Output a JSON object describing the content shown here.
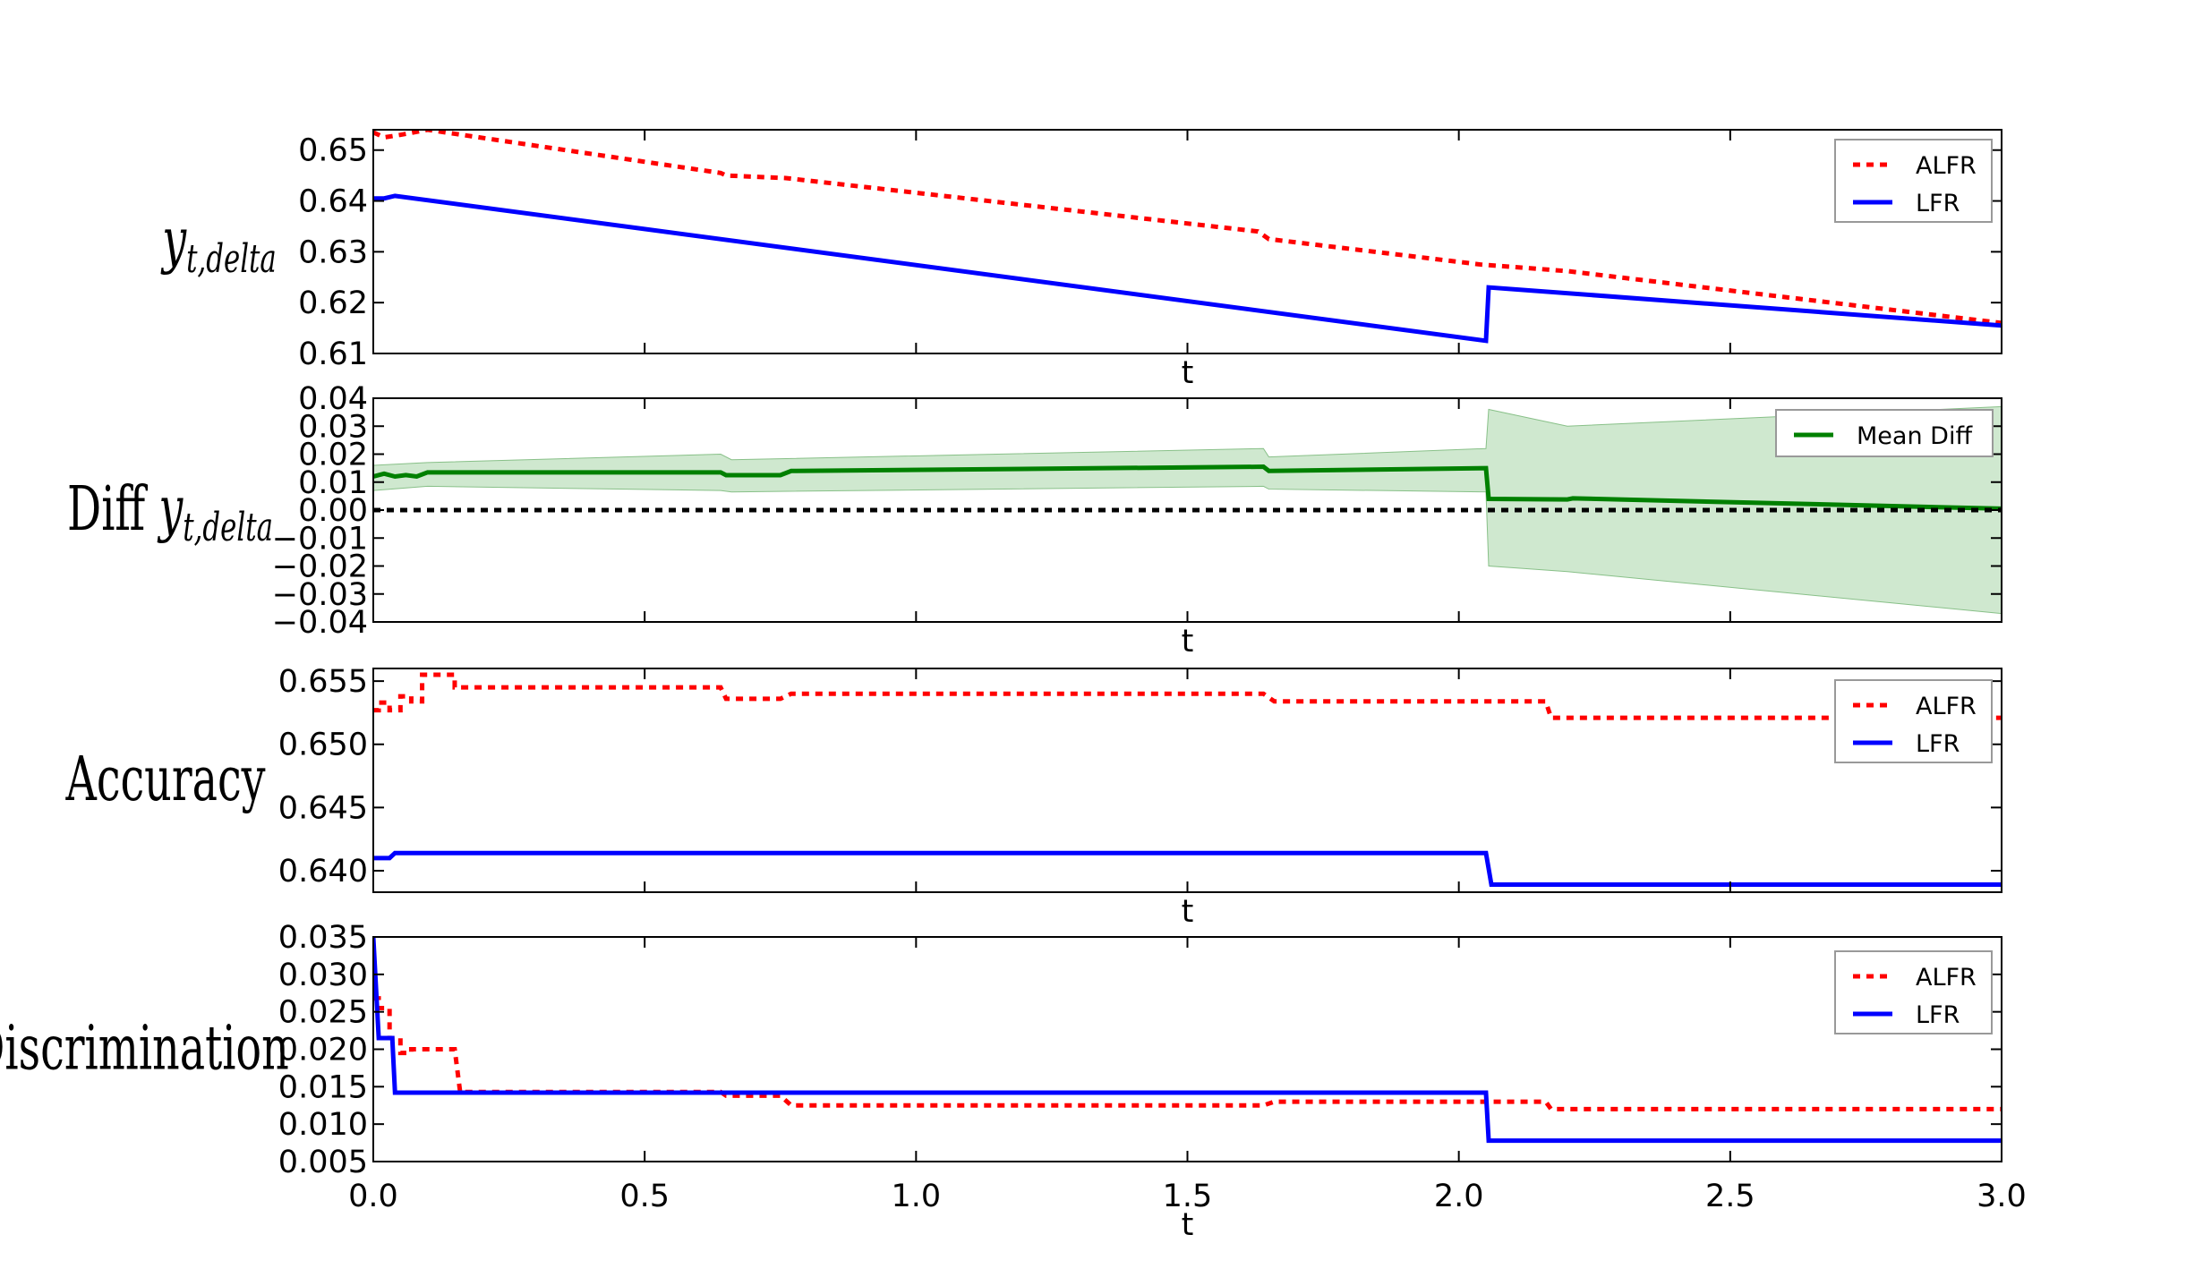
{
  "x_ticks": [
    "0.0",
    "0.5",
    "1.0",
    "1.5",
    "2.0",
    "2.5",
    "3.0"
  ],
  "chart_data": [
    {
      "type": "line",
      "xlabel": "t",
      "ylabel": "y_{t,delta}",
      "ylabel_parts": {
        "base": "y",
        "sub": "t,delta"
      },
      "xlim": [
        0,
        3
      ],
      "ylim": [
        0.61,
        0.654
      ],
      "yticks": [
        "0.61",
        "0.62",
        "0.63",
        "0.64",
        "0.65"
      ],
      "ytick_values": [
        0.61,
        0.62,
        0.63,
        0.64,
        0.65
      ],
      "legend_position": "top-right",
      "series": [
        {
          "name": "ALFR",
          "color": "#ff0000",
          "style": "dotted",
          "points": [
            [
              0,
              0.6535
            ],
            [
              0.02,
              0.6525
            ],
            [
              0.05,
              0.653
            ],
            [
              0.1,
              0.654
            ],
            [
              0.64,
              0.6455
            ],
            [
              0.65,
              0.645
            ],
            [
              0.76,
              0.6445
            ],
            [
              1.63,
              0.634
            ],
            [
              1.65,
              0.6325
            ],
            [
              2.04,
              0.6275
            ],
            [
              2.2,
              0.6262
            ],
            [
              3.0,
              0.616
            ]
          ]
        },
        {
          "name": "LFR",
          "color": "#0000ff",
          "style": "solid",
          "points": [
            [
              0,
              0.6405
            ],
            [
              0.02,
              0.6405
            ],
            [
              0.04,
              0.641
            ],
            [
              2.05,
              0.6125
            ],
            [
              2.055,
              0.623
            ],
            [
              3.0,
              0.6155
            ]
          ]
        }
      ]
    },
    {
      "type": "line",
      "xlabel": "t",
      "ylabel": "Diff y_{t,delta}",
      "ylabel_parts": {
        "prefix": "Diff",
        "base": "y",
        "sub": "t,delta"
      },
      "xlim": [
        0,
        3
      ],
      "ylim": [
        -0.04,
        0.04
      ],
      "yticks": [
        "0.04",
        "0.03",
        "0.02",
        "0.01",
        "0.00",
        "−0.01",
        "−0.02",
        "−0.03",
        "−0.04"
      ],
      "ytick_values": [
        0.04,
        0.03,
        0.02,
        0.01,
        0.0,
        -0.01,
        -0.02,
        -0.03,
        -0.04
      ],
      "legend_position": "top-right",
      "series": [
        {
          "name": "Mean Diff",
          "color": "#008000",
          "style": "solid",
          "points": [
            [
              0,
              0.012
            ],
            [
              0.02,
              0.013
            ],
            [
              0.04,
              0.012
            ],
            [
              0.06,
              0.0125
            ],
            [
              0.08,
              0.012
            ],
            [
              0.1,
              0.0135
            ],
            [
              0.64,
              0.0135
            ],
            [
              0.65,
              0.0125
            ],
            [
              0.75,
              0.0125
            ],
            [
              0.77,
              0.014
            ],
            [
              1.64,
              0.0155
            ],
            [
              1.65,
              0.014
            ],
            [
              2.05,
              0.015
            ],
            [
              2.055,
              0.004
            ],
            [
              2.2,
              0.0038
            ],
            [
              2.21,
              0.0042
            ],
            [
              3.0,
              0.0005
            ]
          ],
          "band_upper": [
            [
              0,
              0.016
            ],
            [
              0.1,
              0.017
            ],
            [
              0.64,
              0.02
            ],
            [
              0.66,
              0.018
            ],
            [
              1.64,
              0.022
            ],
            [
              1.65,
              0.019
            ],
            [
              2.05,
              0.022
            ],
            [
              2.055,
              0.036
            ],
            [
              2.2,
              0.03
            ],
            [
              3.0,
              0.037
            ]
          ],
          "band_lower": [
            [
              0,
              0.007
            ],
            [
              0.1,
              0.0085
            ],
            [
              0.64,
              0.007
            ],
            [
              0.66,
              0.0065
            ],
            [
              1.64,
              0.0085
            ],
            [
              1.65,
              0.0075
            ],
            [
              2.05,
              0.0065
            ],
            [
              2.055,
              -0.02
            ],
            [
              2.2,
              -0.022
            ],
            [
              3.0,
              -0.037
            ]
          ]
        },
        {
          "name": "",
          "color": "#000000",
          "style": "dotted",
          "points": [
            [
              0,
              0
            ],
            [
              3,
              0
            ]
          ]
        }
      ]
    },
    {
      "type": "line",
      "xlabel": "t",
      "ylabel": "Accuracy",
      "xlim": [
        0,
        3
      ],
      "ylim": [
        0.6383,
        0.656
      ],
      "yticks": [
        "0.655",
        "0.650",
        "0.645",
        "0.640"
      ],
      "ytick_values": [
        0.655,
        0.65,
        0.645,
        0.64
      ],
      "legend_position": "top-right",
      "series": [
        {
          "name": "ALFR",
          "color": "#ff0000",
          "style": "dotted",
          "points": [
            [
              0,
              0.6527
            ],
            [
              0.01,
              0.6527
            ],
            [
              0.01,
              0.6533
            ],
            [
              0.03,
              0.6533
            ],
            [
              0.03,
              0.6527
            ],
            [
              0.05,
              0.6527
            ],
            [
              0.05,
              0.6538
            ],
            [
              0.07,
              0.6538
            ],
            [
              0.07,
              0.6534
            ],
            [
              0.09,
              0.6534
            ],
            [
              0.09,
              0.6555
            ],
            [
              0.15,
              0.6555
            ],
            [
              0.15,
              0.6545
            ],
            [
              0.64,
              0.6545
            ],
            [
              0.65,
              0.6536
            ],
            [
              0.75,
              0.6536
            ],
            [
              0.77,
              0.654
            ],
            [
              1.64,
              0.654
            ],
            [
              1.66,
              0.6534
            ],
            [
              2.16,
              0.6534
            ],
            [
              2.17,
              0.6521
            ],
            [
              3.0,
              0.6521
            ]
          ]
        },
        {
          "name": "LFR",
          "color": "#0000ff",
          "style": "solid",
          "points": [
            [
              0,
              0.641
            ],
            [
              0.03,
              0.641
            ],
            [
              0.04,
              0.6414
            ],
            [
              2.05,
              0.6414
            ],
            [
              2.06,
              0.6389
            ],
            [
              3.0,
              0.6389
            ]
          ]
        }
      ]
    },
    {
      "type": "line",
      "xlabel": "t",
      "ylabel": "Discrimination",
      "xlim": [
        0,
        3
      ],
      "ylim": [
        0.005,
        0.035
      ],
      "yticks": [
        "0.035",
        "0.030",
        "0.025",
        "0.020",
        "0.015",
        "0.010",
        "0.005"
      ],
      "ytick_values": [
        0.035,
        0.03,
        0.025,
        0.02,
        0.015,
        0.01,
        0.005
      ],
      "legend_position": "top-right",
      "series": [
        {
          "name": "ALFR",
          "color": "#ff0000",
          "style": "dotted",
          "points": [
            [
              0,
              0.0268
            ],
            [
              0.01,
              0.0268
            ],
            [
              0.01,
              0.0255
            ],
            [
              0.03,
              0.0255
            ],
            [
              0.03,
              0.0215
            ],
            [
              0.05,
              0.0215
            ],
            [
              0.05,
              0.0195
            ],
            [
              0.07,
              0.0195
            ],
            [
              0.07,
              0.02
            ],
            [
              0.15,
              0.02
            ],
            [
              0.16,
              0.0143
            ],
            [
              0.64,
              0.0143
            ],
            [
              0.65,
              0.0138
            ],
            [
              0.75,
              0.0138
            ],
            [
              0.77,
              0.0125
            ],
            [
              1.64,
              0.0125
            ],
            [
              1.66,
              0.013
            ],
            [
              2.16,
              0.013
            ],
            [
              2.17,
              0.012
            ],
            [
              3.0,
              0.012
            ]
          ]
        },
        {
          "name": "LFR",
          "color": "#0000ff",
          "style": "solid",
          "points": [
            [
              0,
              0.035
            ],
            [
              0.01,
              0.0215
            ],
            [
              0.035,
              0.0215
            ],
            [
              0.04,
              0.0142
            ],
            [
              2.05,
              0.0142
            ],
            [
              2.055,
              0.0078
            ],
            [
              3.0,
              0.0078
            ]
          ]
        }
      ]
    }
  ]
}
